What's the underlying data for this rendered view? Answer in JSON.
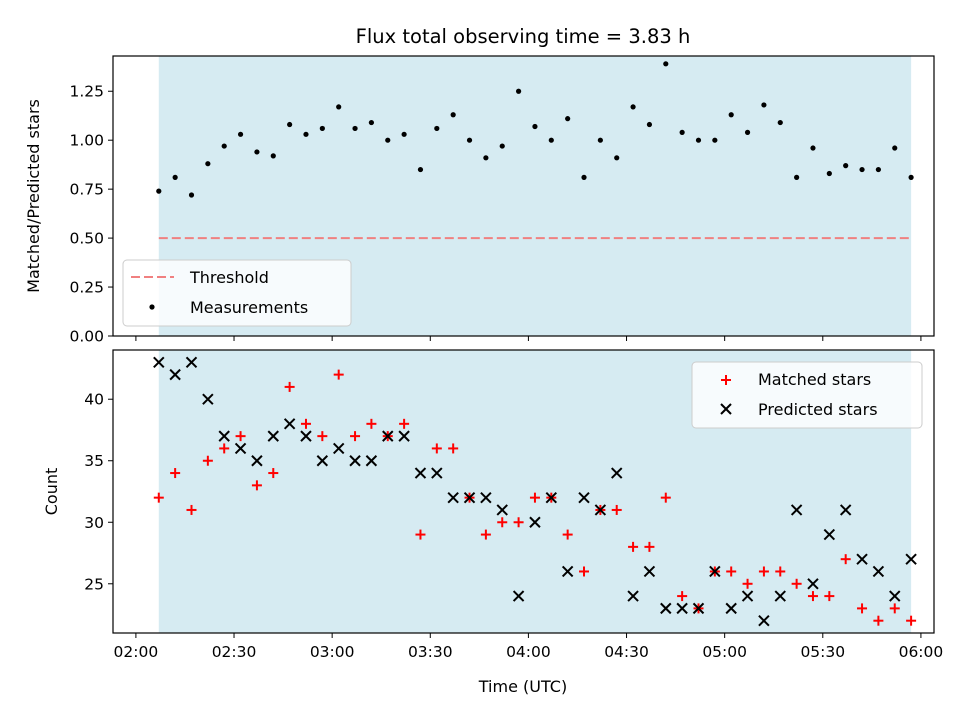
{
  "figure": {
    "title": "Flux total observing time = 3.83 h",
    "xlabel": "Time (UTC)",
    "x_ticks": [
      "02:00",
      "02:30",
      "03:00",
      "03:30",
      "04:00",
      "04:30",
      "05:00",
      "05:30",
      "06:00"
    ]
  },
  "colors": {
    "span": "#add8e6",
    "threshold": "#f08080",
    "matched": "#ff0000",
    "predicted": "#000000"
  },
  "chart_data": [
    {
      "type": "scatter",
      "panel": "top",
      "ylabel": "Matched/Predicted stars",
      "xlim": [
        "02:00",
        "06:00"
      ],
      "ylim": [
        0,
        1.43
      ],
      "y_ticks": [
        "0.00",
        "0.25",
        "0.50",
        "0.75",
        "1.00",
        "1.25"
      ],
      "shaded_span": [
        "02:07",
        "05:57"
      ],
      "threshold": {
        "name": "Threshold",
        "value": 0.5
      },
      "legend": {
        "position": "lower-left",
        "entries": [
          "Threshold",
          "Measurements"
        ]
      },
      "series": [
        {
          "name": "Measurements",
          "x": [
            "02:07",
            "02:12",
            "02:17",
            "02:22",
            "02:27",
            "02:32",
            "02:37",
            "02:42",
            "02:47",
            "02:52",
            "02:57",
            "03:02",
            "03:07",
            "03:12",
            "03:17",
            "03:22",
            "03:27",
            "03:32",
            "03:37",
            "03:42",
            "03:47",
            "03:52",
            "03:57",
            "04:02",
            "04:07",
            "04:12",
            "04:17",
            "04:22",
            "04:27",
            "04:32",
            "04:37",
            "04:42",
            "04:47",
            "04:52",
            "04:57",
            "05:02",
            "05:07",
            "05:12",
            "05:17",
            "05:22",
            "05:27",
            "05:32",
            "05:37",
            "05:42",
            "05:47",
            "05:52",
            "05:57"
          ],
          "y": [
            0.74,
            0.81,
            0.72,
            0.88,
            0.97,
            1.03,
            0.94,
            0.92,
            1.08,
            1.03,
            1.06,
            1.17,
            1.06,
            1.09,
            1.0,
            1.03,
            0.85,
            1.06,
            1.13,
            1.0,
            0.91,
            0.97,
            1.25,
            1.07,
            1.0,
            1.11,
            0.81,
            1.0,
            0.91,
            1.17,
            1.08,
            1.39,
            1.04,
            1.0,
            1.0,
            1.13,
            1.04,
            1.18,
            1.09,
            0.81,
            0.96,
            0.83,
            0.87,
            0.85,
            0.85,
            0.96,
            0.81
          ]
        }
      ]
    },
    {
      "type": "scatter",
      "panel": "bottom",
      "ylabel": "Count",
      "xlim": [
        "02:00",
        "06:00"
      ],
      "ylim": [
        21,
        44
      ],
      "y_ticks": [
        "25",
        "30",
        "35",
        "40"
      ],
      "shaded_span": [
        "02:07",
        "05:57"
      ],
      "legend": {
        "position": "top-right",
        "entries": [
          "Matched stars",
          "Predicted stars"
        ]
      },
      "x": [
        "02:07",
        "02:12",
        "02:17",
        "02:22",
        "02:27",
        "02:32",
        "02:37",
        "02:42",
        "02:47",
        "02:52",
        "02:57",
        "03:02",
        "03:07",
        "03:12",
        "03:17",
        "03:22",
        "03:27",
        "03:32",
        "03:37",
        "03:42",
        "03:47",
        "03:52",
        "03:57",
        "04:02",
        "04:07",
        "04:12",
        "04:17",
        "04:22",
        "04:27",
        "04:32",
        "04:37",
        "04:42",
        "04:47",
        "04:52",
        "04:57",
        "05:02",
        "05:07",
        "05:12",
        "05:17",
        "05:22",
        "05:27",
        "05:32",
        "05:37",
        "05:42",
        "05:47",
        "05:52",
        "05:57"
      ],
      "series": [
        {
          "name": "Matched stars",
          "marker": "plus",
          "values": [
            32,
            34,
            31,
            35,
            36,
            37,
            33,
            34,
            41,
            38,
            37,
            42,
            37,
            38,
            37,
            38,
            29,
            36,
            36,
            32,
            29,
            30,
            30,
            32,
            32,
            29,
            26,
            31,
            31,
            28,
            28,
            32,
            24,
            23,
            26,
            26,
            25,
            26,
            26,
            25,
            24,
            24,
            27,
            23,
            22,
            23,
            22
          ]
        },
        {
          "name": "Predicted stars",
          "marker": "x",
          "values": [
            43,
            42,
            43,
            40,
            37,
            36,
            35,
            37,
            38,
            37,
            35,
            36,
            35,
            35,
            37,
            37,
            34,
            34,
            32,
            32,
            32,
            31,
            24,
            30,
            32,
            26,
            32,
            31,
            34,
            24,
            26,
            23,
            23,
            23,
            26,
            23,
            24,
            22,
            24,
            31,
            25,
            29,
            31,
            27,
            26,
            24,
            27
          ]
        }
      ]
    }
  ]
}
